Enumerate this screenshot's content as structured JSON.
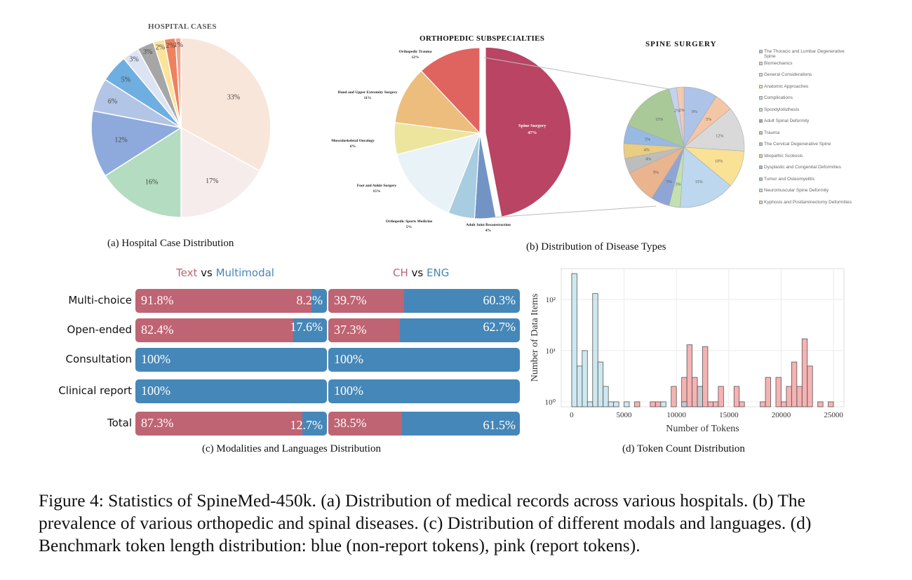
{
  "figure_caption": "Figure 4: Statistics of SpineMed-450k. (a) Distribution of medical records across various hospitals. (b) The prevalence of various orthopedic and spinal diseases. (c) Distribution of different modals and languages. (d) Benchmark token length distribution: blue (non-report tokens), pink (report tokens).",
  "chart_data": [
    {
      "id": "a",
      "type": "pie",
      "title": "HOSPITAL CASES",
      "caption": "(a) Hospital Case Distribution",
      "labels": [
        "33%",
        "17%",
        "16%",
        "12%",
        "6%",
        "5%",
        "3%",
        "3%",
        "2%",
        "2%",
        "1%"
      ],
      "values": [
        33,
        17,
        16,
        12,
        6,
        5,
        3,
        3,
        2,
        2,
        1
      ],
      "colors": [
        "#f9e6da",
        "#f7ecec",
        "#b3dcc0",
        "#8eaadc",
        "#b2c5e6",
        "#6eaee0",
        "#dce3f3",
        "#a6a6a6",
        "#fbe39a",
        "#ec825f",
        "#f0a58f"
      ]
    },
    {
      "id": "b1",
      "type": "pie",
      "title": "ORTHOPEDIC SUBSPECIALTIES",
      "caption": "(b)  Distribution of Disease Types",
      "slices": [
        {
          "name": "Spine Surgery",
          "value": 47,
          "label": "47%",
          "color": "#b94463",
          "exploded": true
        },
        {
          "name": "Adult Joint Reconstruction",
          "value": 4,
          "label": "4%",
          "color": "#7294c4"
        },
        {
          "name": "Orthopedic Sports Medicine",
          "value": 5,
          "label": "5%",
          "color": "#a8cce0"
        },
        {
          "name": "Foot and Ankle Surgery",
          "value": 15,
          "label": "15%",
          "color": "#e9f2f7"
        },
        {
          "name": "Musculoskeletal Oncology",
          "value": 6,
          "label": "6%",
          "color": "#ede59d"
        },
        {
          "name": "Hand and Upper Extremity Surgery",
          "value": 11,
          "label": "11%",
          "color": "#edbd7d"
        },
        {
          "name": "Orthopedic Trauma",
          "value": 12,
          "label": "12%",
          "color": "#df6460"
        }
      ]
    },
    {
      "id": "b2",
      "type": "pie",
      "title": "SPINE SURGERY",
      "slices": [
        {
          "name": "The Thoracic and Lumbar Degenerative Spine",
          "value": 9,
          "label": "9%",
          "color": "#adc3e8"
        },
        {
          "name": "Biomechanics",
          "value": 5,
          "label": "5%",
          "color": "#f3c6a5"
        },
        {
          "name": "General Considerations",
          "value": 12,
          "label": "12%",
          "color": "#d9d9d9"
        },
        {
          "name": "Anatomic Approaches",
          "value": 10,
          "label": "10%",
          "color": "#f9e195"
        },
        {
          "name": "Complications",
          "value": 15,
          "label": "15%",
          "color": "#bcd7ee"
        },
        {
          "name": "Spondylolisthesis",
          "value": 3,
          "label": "3%",
          "color": "#c4e0b1"
        },
        {
          "name": "Adult Spinal Deformity",
          "value": 5,
          "label": "5%",
          "color": "#8ea5d6"
        },
        {
          "name": "Trauma",
          "value": 9,
          "label": "9%",
          "color": "#e9b48e"
        },
        {
          "name": "The Cervical Degenerative Spine",
          "value": 4,
          "label": "4%",
          "color": "#bdbdbd"
        },
        {
          "name": "Idiopathic Scoliosis",
          "value": 4,
          "label": "4%",
          "color": "#e8cd82"
        },
        {
          "name": "Dysplastic and Congenital Deformities",
          "value": 5,
          "label": "5%",
          "color": "#98b9e2"
        },
        {
          "name": "Tumor and Osteomyelitis",
          "value": 15,
          "label": "15%",
          "color": "#a9ca98"
        },
        {
          "name": "Neuromuscular Spine Deformity",
          "value": 2,
          "label": "2%",
          "color": "#c2d3f0"
        },
        {
          "name": "Kyphosis and Postlaminectomy Deformities",
          "value": 2,
          "label": "2%",
          "color": "#f4c9b1"
        }
      ]
    },
    {
      "id": "c",
      "type": "bar",
      "orientation": "horizontal-stacked",
      "caption": "(c) Modalities and Languages Distribution",
      "headers": [
        {
          "a": "Text",
          "vs": "vs",
          "b": "Multimodal"
        },
        {
          "a": "CH",
          "vs": "vs",
          "b": "ENG"
        }
      ],
      "colors": {
        "a": "#bf6472",
        "b": "#4587b8"
      },
      "categories": [
        "Multi-choice",
        "Open-ended",
        "Consultation",
        "Clinical report",
        "Total"
      ],
      "groups": [
        {
          "name": "Text vs Multimodal",
          "a_values": [
            91.8,
            82.4,
            0,
            0,
            87.3
          ],
          "b_values": [
            8.2,
            17.6,
            100,
            100,
            12.7
          ],
          "a_labels": [
            "91.8%",
            "82.4%",
            "",
            "",
            "87.3%"
          ],
          "b_labels": [
            "8.2%",
            "17.6%",
            "100%",
            "100%",
            "12.7%"
          ]
        },
        {
          "name": "CH vs ENG",
          "a_values": [
            39.7,
            37.3,
            0,
            0,
            38.5
          ],
          "b_values": [
            60.3,
            62.7,
            100,
            100,
            61.5
          ],
          "a_labels": [
            "39.7%",
            "37.3%",
            "",
            "",
            "38.5%"
          ],
          "b_labels": [
            "60.3%",
            "62.7%",
            "100%",
            "100%",
            "61.5%"
          ]
        }
      ]
    },
    {
      "id": "d",
      "type": "bar",
      "subtype": "histogram",
      "caption": "(d) Token Count Distribution",
      "xlabel": "Number of Tokens",
      "ylabel": "Number of Data Items",
      "yscale": "log",
      "xlim": [
        -1000,
        26000
      ],
      "ylim": [
        0.8,
        400
      ],
      "xticks": [
        0,
        5000,
        10000,
        15000,
        20000,
        25000
      ],
      "xtick_labels": [
        "0",
        "5000",
        "10000",
        "15000",
        "20000",
        "25000"
      ],
      "yticks": [
        1,
        10,
        100
      ],
      "ytick_labels": [
        "10⁰",
        "10¹",
        "10²"
      ],
      "bin_width": 500,
      "grid": true,
      "series": [
        {
          "name": "non-report tokens",
          "color": "#add8e6",
          "bins": [
            [
              0,
              320
            ],
            [
              500,
              5
            ],
            [
              1000,
              10
            ],
            [
              1500,
              1
            ],
            [
              2000,
              130
            ],
            [
              2500,
              6
            ],
            [
              3000,
              2
            ],
            [
              3500,
              1
            ],
            [
              4000,
              1
            ],
            [
              5000,
              1
            ],
            [
              8500,
              1
            ],
            [
              10500,
              1
            ],
            [
              12000,
              2
            ]
          ]
        },
        {
          "name": "report tokens",
          "color": "#f08080",
          "bins": [
            [
              6000,
              1
            ],
            [
              7500,
              1
            ],
            [
              8000,
              1
            ],
            [
              9500,
              2
            ],
            [
              10500,
              3
            ],
            [
              11000,
              13
            ],
            [
              11500,
              3
            ],
            [
              12000,
              2
            ],
            [
              12500,
              12
            ],
            [
              13000,
              1
            ],
            [
              13500,
              1
            ],
            [
              14000,
              2
            ],
            [
              15500,
              2
            ],
            [
              16000,
              1
            ],
            [
              18000,
              1
            ],
            [
              18500,
              3
            ],
            [
              19500,
              3
            ],
            [
              20000,
              1
            ],
            [
              20500,
              2
            ],
            [
              21000,
              6
            ],
            [
              21500,
              2
            ],
            [
              22000,
              17
            ],
            [
              22500,
              5
            ],
            [
              23500,
              1
            ],
            [
              24500,
              1
            ]
          ]
        }
      ]
    }
  ]
}
